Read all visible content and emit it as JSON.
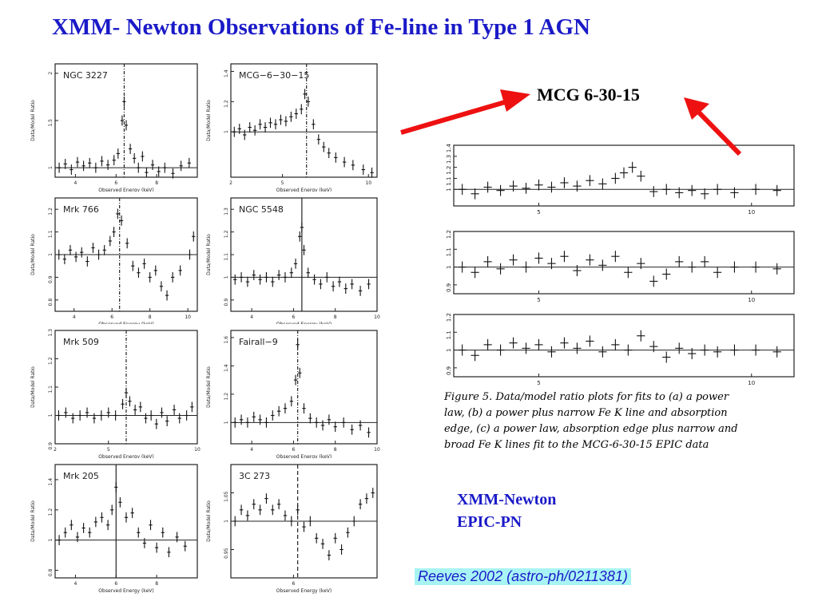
{
  "title": "XMM- Newton Observations of Fe-line in Type 1 AGN",
  "callout_label": "MCG 6-30-15",
  "instrument": [
    "XMM-Newton",
    "EPIC-PN"
  ],
  "reference": "Reeves 2002 (astro-ph/0211381)",
  "arrow_color": "#ee1111",
  "caption_lines": [
    "Figure 5. Data/model ratio plots for fits to (a) a power",
    "law, (b) a power plus narrow Fe K line and absorption",
    "edge, (c) a power law, absorption edge plus narrow and",
    "broad Fe K lines fit to the MCG-6-30-15 EPIC data"
  ],
  "chart_data": [
    {
      "type": "scatter",
      "title": "NGC 3227",
      "xlabel": "Observed Energy (keV)",
      "ylabel": "Data/Model Ratio",
      "xlim": [
        3,
        10
      ],
      "ylim": [
        0.9,
        2.1
      ],
      "xticks": [
        4,
        6,
        8
      ],
      "yticks": [
        1,
        1.5,
        2
      ],
      "line_x": 6.4,
      "line_dash": "dashdot",
      "points": [
        [
          3.2,
          1.0
        ],
        [
          3.5,
          1.04
        ],
        [
          3.8,
          0.98
        ],
        [
          4.1,
          1.06
        ],
        [
          4.4,
          1.02
        ],
        [
          4.7,
          1.05
        ],
        [
          5.0,
          1.0
        ],
        [
          5.3,
          1.07
        ],
        [
          5.6,
          1.03
        ],
        [
          5.9,
          1.08
        ],
        [
          6.1,
          1.15
        ],
        [
          6.3,
          1.5
        ],
        [
          6.4,
          1.7
        ],
        [
          6.5,
          1.45
        ],
        [
          6.7,
          1.2
        ],
        [
          6.9,
          1.1
        ],
        [
          7.1,
          1.0
        ],
        [
          7.3,
          1.12
        ],
        [
          7.5,
          0.95
        ],
        [
          7.8,
          1.03
        ],
        [
          8.1,
          0.96
        ],
        [
          8.4,
          1.0
        ],
        [
          8.8,
          0.94
        ],
        [
          9.2,
          1.02
        ],
        [
          9.6,
          1.05
        ]
      ]
    },
    {
      "type": "scatter",
      "title": "MCG−6−30−15",
      "xlabel": "Observed Energy (keV)",
      "ylabel": "Data/Model Ratio",
      "xlim": [
        2,
        10.5
      ],
      "ylim": [
        0.7,
        1.45
      ],
      "xticks": [
        2,
        5,
        10
      ],
      "yticks": [
        1,
        1.2,
        1.4
      ],
      "line_x": 6.4,
      "line_dash": "dashdot",
      "points": [
        [
          2.2,
          1.0
        ],
        [
          2.5,
          1.02
        ],
        [
          2.8,
          0.98
        ],
        [
          3.1,
          1.03
        ],
        [
          3.4,
          1.01
        ],
        [
          3.7,
          1.05
        ],
        [
          4.0,
          1.03
        ],
        [
          4.3,
          1.06
        ],
        [
          4.6,
          1.05
        ],
        [
          4.9,
          1.08
        ],
        [
          5.2,
          1.07
        ],
        [
          5.5,
          1.1
        ],
        [
          5.8,
          1.12
        ],
        [
          6.1,
          1.15
        ],
        [
          6.3,
          1.25
        ],
        [
          6.5,
          1.2
        ],
        [
          6.8,
          1.05
        ],
        [
          7.1,
          0.95
        ],
        [
          7.4,
          0.9
        ],
        [
          7.7,
          0.86
        ],
        [
          8.1,
          0.83
        ],
        [
          8.6,
          0.8
        ],
        [
          9.1,
          0.78
        ],
        [
          9.7,
          0.75
        ],
        [
          10.2,
          0.73
        ]
      ]
    },
    {
      "type": "scatter",
      "title": "Mrk 766",
      "xlabel": "Observed Energy (keV)",
      "ylabel": "Data/Model Ratio",
      "xlim": [
        3,
        10.5
      ],
      "ylim": [
        0.75,
        1.25
      ],
      "xticks": [
        4,
        6,
        8,
        10
      ],
      "yticks": [
        0.8,
        0.9,
        1,
        1.1,
        1.2
      ],
      "line_x": 6.4,
      "line_dash": "dashdot",
      "points": [
        [
          3.2,
          1.0
        ],
        [
          3.5,
          0.98
        ],
        [
          3.8,
          1.02
        ],
        [
          4.1,
          0.99
        ],
        [
          4.4,
          1.01
        ],
        [
          4.7,
          0.97
        ],
        [
          5.0,
          1.03
        ],
        [
          5.3,
          1.0
        ],
        [
          5.6,
          1.02
        ],
        [
          5.9,
          1.06
        ],
        [
          6.1,
          1.1
        ],
        [
          6.3,
          1.18
        ],
        [
          6.5,
          1.15
        ],
        [
          6.8,
          1.05
        ],
        [
          7.1,
          0.95
        ],
        [
          7.4,
          0.92
        ],
        [
          7.7,
          0.96
        ],
        [
          8.0,
          0.9
        ],
        [
          8.3,
          0.93
        ],
        [
          8.6,
          0.86
        ],
        [
          8.9,
          0.82
        ],
        [
          9.2,
          0.9
        ],
        [
          9.6,
          0.93
        ],
        [
          10.1,
          1.0
        ],
        [
          10.3,
          1.08
        ]
      ]
    },
    {
      "type": "scatter",
      "title": "NGC 5548",
      "xlabel": "Observed Energy (keV)",
      "ylabel": "Data/Model Ratio",
      "xlim": [
        3,
        10
      ],
      "ylim": [
        0.85,
        1.35
      ],
      "xticks": [
        4,
        6,
        8,
        10
      ],
      "yticks": [
        0.9,
        1,
        1.1,
        1.2,
        1.3
      ],
      "line_x": 6.4,
      "line_dash": "solid",
      "points": [
        [
          3.2,
          0.99
        ],
        [
          3.5,
          1.0
        ],
        [
          3.8,
          0.98
        ],
        [
          4.1,
          1.01
        ],
        [
          4.4,
          0.99
        ],
        [
          4.7,
          1.0
        ],
        [
          5.0,
          0.98
        ],
        [
          5.3,
          1.01
        ],
        [
          5.6,
          1.0
        ],
        [
          5.9,
          1.02
        ],
        [
          6.1,
          1.06
        ],
        [
          6.3,
          1.18
        ],
        [
          6.4,
          1.22
        ],
        [
          6.5,
          1.12
        ],
        [
          6.7,
          1.02
        ],
        [
          7.0,
          0.99
        ],
        [
          7.3,
          0.97
        ],
        [
          7.6,
          1.0
        ],
        [
          7.9,
          0.96
        ],
        [
          8.2,
          0.98
        ],
        [
          8.5,
          0.95
        ],
        [
          8.8,
          0.97
        ],
        [
          9.2,
          0.94
        ],
        [
          9.6,
          0.97
        ]
      ]
    },
    {
      "type": "scatter",
      "title": "Mrk 509",
      "xlabel": "Observed Energy (keV)",
      "ylabel": "Data/Model Ratio",
      "xlim": [
        2,
        10
      ],
      "ylim": [
        0.9,
        1.3
      ],
      "xticks": [
        2,
        5,
        10
      ],
      "yticks": [
        0.9,
        1,
        1.1,
        1.2,
        1.3
      ],
      "line_x": 6.0,
      "line_dash": "dashdot",
      "points": [
        [
          2.2,
          1.0
        ],
        [
          2.6,
          1.01
        ],
        [
          3.0,
          0.99
        ],
        [
          3.4,
          1.0
        ],
        [
          3.8,
          1.01
        ],
        [
          4.2,
          0.99
        ],
        [
          4.6,
          1.0
        ],
        [
          5.0,
          1.01
        ],
        [
          5.4,
          1.0
        ],
        [
          5.8,
          1.04
        ],
        [
          6.0,
          1.08
        ],
        [
          6.2,
          1.05
        ],
        [
          6.5,
          1.02
        ],
        [
          6.8,
          1.03
        ],
        [
          7.1,
          0.99
        ],
        [
          7.4,
          1.0
        ],
        [
          7.7,
          0.97
        ],
        [
          8.0,
          1.01
        ],
        [
          8.3,
          0.98
        ],
        [
          8.7,
          1.02
        ],
        [
          9.0,
          0.99
        ],
        [
          9.4,
          1.0
        ],
        [
          9.7,
          1.03
        ]
      ]
    },
    {
      "type": "scatter",
      "title": "Fairall−9",
      "xlabel": "Observed Energy (keV)",
      "ylabel": "Data/Model Ratio",
      "xlim": [
        3,
        10
      ],
      "ylim": [
        0.85,
        1.65
      ],
      "xticks": [
        4,
        6,
        8,
        10
      ],
      "yticks": [
        1,
        1.2,
        1.4,
        1.6
      ],
      "line_x": 6.2,
      "line_dash": "dashdot",
      "points": [
        [
          3.2,
          1.0
        ],
        [
          3.5,
          1.02
        ],
        [
          3.8,
          1.0
        ],
        [
          4.1,
          1.04
        ],
        [
          4.4,
          1.02
        ],
        [
          4.7,
          1.0
        ],
        [
          5.0,
          1.05
        ],
        [
          5.3,
          1.08
        ],
        [
          5.6,
          1.1
        ],
        [
          5.9,
          1.15
        ],
        [
          6.1,
          1.3
        ],
        [
          6.2,
          1.55
        ],
        [
          6.3,
          1.35
        ],
        [
          6.5,
          1.1
        ],
        [
          6.8,
          1.03
        ],
        [
          7.1,
          1.0
        ],
        [
          7.4,
          0.98
        ],
        [
          7.7,
          1.02
        ],
        [
          8.0,
          0.97
        ],
        [
          8.4,
          1.0
        ],
        [
          8.8,
          0.95
        ],
        [
          9.2,
          0.98
        ],
        [
          9.6,
          0.93
        ]
      ]
    },
    {
      "type": "scatter",
      "title": "Mrk 205",
      "xlabel": "Observed Energy (keV)",
      "ylabel": "Data/Model Ratio",
      "xlim": [
        3,
        10
      ],
      "ylim": [
        0.75,
        1.5
      ],
      "xticks": [
        4,
        6,
        8
      ],
      "yticks": [
        0.8,
        1,
        1.2,
        1.4
      ],
      "line_x": 6.0,
      "line_dash": "solid",
      "points": [
        [
          3.2,
          1.0
        ],
        [
          3.5,
          1.05
        ],
        [
          3.8,
          1.1
        ],
        [
          4.1,
          1.02
        ],
        [
          4.4,
          1.08
        ],
        [
          4.7,
          1.05
        ],
        [
          5.0,
          1.12
        ],
        [
          5.3,
          1.15
        ],
        [
          5.6,
          1.1
        ],
        [
          5.8,
          1.2
        ],
        [
          6.0,
          1.35
        ],
        [
          6.2,
          1.25
        ],
        [
          6.5,
          1.15
        ],
        [
          6.8,
          1.18
        ],
        [
          7.1,
          1.05
        ],
        [
          7.4,
          0.98
        ],
        [
          7.7,
          1.1
        ],
        [
          8.0,
          0.95
        ],
        [
          8.3,
          1.05
        ],
        [
          8.6,
          0.92
        ],
        [
          9.0,
          1.02
        ],
        [
          9.4,
          0.96
        ]
      ]
    },
    {
      "type": "scatter",
      "title": "3C 273",
      "xlabel": "Observed Energy (keV)",
      "ylabel": "Data/Model Ratio",
      "xlim": [
        3,
        10
      ],
      "ylim": [
        0.9,
        1.1
      ],
      "xticks": [
        6
      ],
      "yticks": [
        0.95,
        1,
        1.05
      ],
      "line_x": 6.2,
      "line_dash": "dashed",
      "points": [
        [
          3.2,
          1.0
        ],
        [
          3.5,
          1.02
        ],
        [
          3.8,
          1.01
        ],
        [
          4.1,
          1.03
        ],
        [
          4.4,
          1.02
        ],
        [
          4.7,
          1.04
        ],
        [
          5.0,
          1.02
        ],
        [
          5.3,
          1.03
        ],
        [
          5.6,
          1.01
        ],
        [
          5.9,
          1.0
        ],
        [
          6.2,
          1.02
        ],
        [
          6.5,
          0.99
        ],
        [
          6.8,
          1.0
        ],
        [
          7.1,
          0.97
        ],
        [
          7.4,
          0.96
        ],
        [
          7.7,
          0.94
        ],
        [
          8.0,
          0.97
        ],
        [
          8.3,
          0.95
        ],
        [
          8.6,
          0.98
        ],
        [
          8.9,
          1.0
        ],
        [
          9.2,
          1.03
        ],
        [
          9.5,
          1.04
        ],
        [
          9.8,
          1.05
        ]
      ]
    },
    {
      "type": "scatter",
      "title": "",
      "xlim": [
        3,
        11
      ],
      "ylim": [
        0.85,
        1.4
      ],
      "xticks": [
        5,
        10
      ],
      "yticks": [
        1,
        1.1,
        1.2,
        1.3,
        1.4
      ],
      "line_y": 1.0,
      "points": [
        [
          3.2,
          1.0
        ],
        [
          3.5,
          0.96
        ],
        [
          3.8,
          1.02
        ],
        [
          4.1,
          0.99
        ],
        [
          4.4,
          1.03
        ],
        [
          4.7,
          1.01
        ],
        [
          5.0,
          1.04
        ],
        [
          5.3,
          1.02
        ],
        [
          5.6,
          1.06
        ],
        [
          5.9,
          1.03
        ],
        [
          6.2,
          1.08
        ],
        [
          6.5,
          1.05
        ],
        [
          6.8,
          1.1
        ],
        [
          7.0,
          1.15
        ],
        [
          7.2,
          1.2
        ],
        [
          7.4,
          1.12
        ],
        [
          7.7,
          0.98
        ],
        [
          8.0,
          1.0
        ],
        [
          8.3,
          0.97
        ],
        [
          8.6,
          0.99
        ],
        [
          8.9,
          0.96
        ],
        [
          9.2,
          1.0
        ],
        [
          9.6,
          0.97
        ],
        [
          10.1,
          1.0
        ],
        [
          10.6,
          0.99
        ]
      ]
    },
    {
      "type": "scatter",
      "title": "",
      "xlim": [
        3,
        11
      ],
      "ylim": [
        0.85,
        1.2
      ],
      "xticks": [
        5,
        10
      ],
      "yticks": [
        0.9,
        1,
        1.1,
        1.2
      ],
      "line_y": 1.0,
      "points": [
        [
          3.2,
          1.0
        ],
        [
          3.5,
          0.97
        ],
        [
          3.8,
          1.03
        ],
        [
          4.1,
          0.99
        ],
        [
          4.4,
          1.04
        ],
        [
          4.7,
          1.0
        ],
        [
          5.0,
          1.05
        ],
        [
          5.3,
          1.02
        ],
        [
          5.6,
          1.06
        ],
        [
          5.9,
          0.98
        ],
        [
          6.2,
          1.04
        ],
        [
          6.5,
          1.01
        ],
        [
          6.8,
          1.06
        ],
        [
          7.1,
          0.97
        ],
        [
          7.4,
          1.02
        ],
        [
          7.7,
          0.92
        ],
        [
          8.0,
          0.96
        ],
        [
          8.3,
          1.03
        ],
        [
          8.6,
          1.0
        ],
        [
          8.9,
          1.03
        ],
        [
          9.2,
          0.97
        ],
        [
          9.6,
          1.0
        ],
        [
          10.1,
          1.0
        ],
        [
          10.6,
          0.99
        ]
      ]
    },
    {
      "type": "scatter",
      "title": "",
      "xlim": [
        3,
        11
      ],
      "ylim": [
        0.85,
        1.2
      ],
      "xticks": [
        5,
        10
      ],
      "yticks": [
        0.9,
        1,
        1.1,
        1.2
      ],
      "line_y": 1.0,
      "points": [
        [
          3.2,
          1.0
        ],
        [
          3.5,
          0.97
        ],
        [
          3.8,
          1.03
        ],
        [
          4.1,
          1.0
        ],
        [
          4.4,
          1.04
        ],
        [
          4.7,
          1.01
        ],
        [
          5.0,
          1.03
        ],
        [
          5.3,
          0.99
        ],
        [
          5.6,
          1.04
        ],
        [
          5.9,
          1.01
        ],
        [
          6.2,
          1.05
        ],
        [
          6.5,
          0.99
        ],
        [
          6.8,
          1.03
        ],
        [
          7.1,
          1.0
        ],
        [
          7.4,
          1.08
        ],
        [
          7.7,
          1.02
        ],
        [
          8.0,
          0.96
        ],
        [
          8.3,
          1.01
        ],
        [
          8.6,
          0.98
        ],
        [
          8.9,
          1.0
        ],
        [
          9.2,
          0.99
        ],
        [
          9.6,
          1.0
        ],
        [
          10.1,
          1.0
        ],
        [
          10.6,
          0.99
        ]
      ]
    }
  ]
}
